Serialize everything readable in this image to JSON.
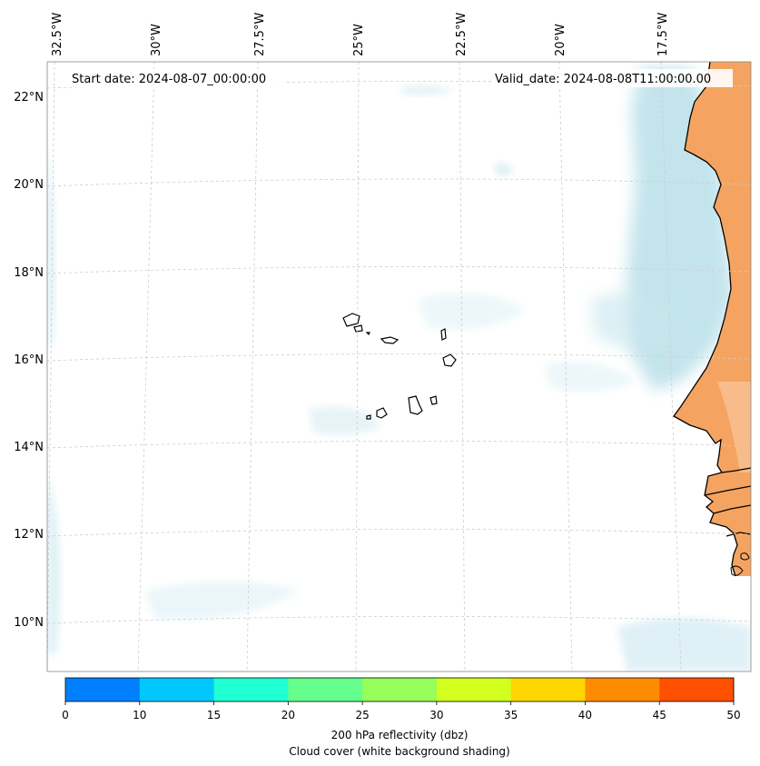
{
  "map": {
    "start_date_label": "Start date: 2024-08-07_00:00:00",
    "valid_date_label": "Valid_date: 2024-08-08T11:00:00.00",
    "longitude_labels": [
      "32.5°W",
      "30°W",
      "27.5°W",
      "25°W",
      "22.5°W",
      "20°W",
      "17.5°W"
    ],
    "latitude_labels": [
      "22°N",
      "20°N",
      "18°N",
      "16°N",
      "14°N",
      "12°N",
      "10°N"
    ]
  },
  "colorbar": {
    "ticks": [
      "0",
      "10",
      "15",
      "20",
      "25",
      "30",
      "35",
      "40",
      "45",
      "50"
    ],
    "colors": [
      "#0080ff",
      "#00c8ff",
      "#1effd2",
      "#64ff8c",
      "#96ff5a",
      "#d2ff1e",
      "#ffd700",
      "#ff8c00",
      "#ff5000"
    ],
    "label_line1": "200 hPa reflectivity (dbz)",
    "label_line2": "Cloud cover (white background shading)"
  },
  "colors": {
    "land": "#f4a460",
    "cloud": "#b0dce6",
    "coastline": "#000000",
    "gridline": "#cccccc"
  }
}
